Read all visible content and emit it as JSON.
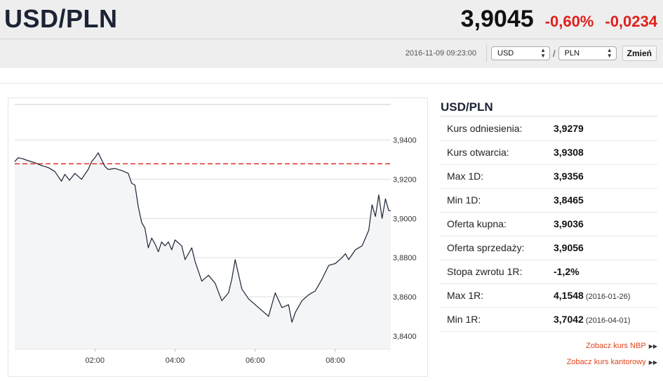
{
  "header": {
    "pair": "USD/PLN",
    "price": "3,9045",
    "change_pct": "-0,60%",
    "change_abs": "-0,0234",
    "timestamp": "2016-11-09 09:23:00",
    "from_currency": "USD",
    "to_currency": "PLN",
    "slash": "/",
    "change_button": "Zmień"
  },
  "colors": {
    "negative": "#e0201c",
    "line": "#1c2335",
    "reference_line": "#e0201c",
    "area_fill": "#f4f5f7",
    "link": "#e0441c"
  },
  "panel": {
    "title": "USD/PLN",
    "rows": [
      {
        "label": "Kurs odniesienia:",
        "value": "3,9279",
        "date": ""
      },
      {
        "label": "Kurs otwarcia:",
        "value": "3,9308",
        "date": ""
      },
      {
        "label": "Max 1D:",
        "value": "3,9356",
        "date": ""
      },
      {
        "label": "Min 1D:",
        "value": "3,8465",
        "date": ""
      },
      {
        "label": "Oferta kupna:",
        "value": "3,9036",
        "date": ""
      },
      {
        "label": "Oferta sprzedaży:",
        "value": "3,9056",
        "date": ""
      },
      {
        "label": "Stopa zwrotu 1R:",
        "value": "-1,2%",
        "date": ""
      },
      {
        "label": "Max 1R:",
        "value": "4,1548",
        "date": "(2016-01-26)"
      },
      {
        "label": "Min 1R:",
        "value": "3,7042",
        "date": "(2016-04-01)"
      }
    ],
    "links": [
      {
        "label": "Zobacz kurs NBP",
        "icon": "double-chevron-right-icon"
      },
      {
        "label": "Zobacz kurs kantorowy",
        "icon": "double-chevron-right-icon"
      }
    ]
  },
  "chart_data": {
    "type": "line",
    "title": "",
    "xlabel": "",
    "ylabel": "",
    "x_ticks": [
      "02:00",
      "04:00",
      "06:00",
      "08:00"
    ],
    "y_ticks": [
      "3,8400",
      "3,8600",
      "3,8800",
      "3,9000",
      "3,9200",
      "3,9400"
    ],
    "xlim": [
      "00:00",
      "09:23"
    ],
    "ylim": [
      3.8335,
      3.9585
    ],
    "reference_line": {
      "value": 3.9279,
      "style": "dashed",
      "color": "#e0201c"
    },
    "grid": "horizontal",
    "series": [
      {
        "name": "",
        "x": [
          "00:00",
          "00:05",
          "00:12",
          "00:20",
          "00:30",
          "00:40",
          "00:50",
          "01:00",
          "01:10",
          "01:15",
          "01:22",
          "01:30",
          "01:40",
          "01:50",
          "01:55",
          "02:00",
          "02:05",
          "02:10",
          "02:15",
          "02:20",
          "02:30",
          "02:40",
          "02:50",
          "02:55",
          "03:00",
          "03:05",
          "03:10",
          "03:15",
          "03:20",
          "03:25",
          "03:30",
          "03:35",
          "03:40",
          "03:45",
          "03:50",
          "03:55",
          "04:00",
          "04:10",
          "04:15",
          "04:25",
          "04:30",
          "04:40",
          "04:50",
          "05:00",
          "05:10",
          "05:20",
          "05:25",
          "05:30",
          "05:40",
          "05:50",
          "06:00",
          "06:10",
          "06:20",
          "06:25",
          "06:30",
          "06:40",
          "06:50",
          "06:55",
          "07:00",
          "07:10",
          "07:20",
          "07:30",
          "07:40",
          "07:50",
          "08:00",
          "08:10",
          "08:15",
          "08:20",
          "08:30",
          "08:40",
          "08:50",
          "08:55",
          "09:00",
          "09:05",
          "09:10",
          "09:15",
          "09:20",
          "09:23"
        ],
        "values": [
          3.929,
          3.931,
          3.9305,
          3.9295,
          3.9285,
          3.927,
          3.926,
          3.924,
          3.919,
          3.9225,
          3.9195,
          3.923,
          3.92,
          3.925,
          3.929,
          3.931,
          3.9335,
          3.93,
          3.9265,
          3.925,
          3.9255,
          3.9245,
          3.923,
          3.918,
          3.917,
          3.906,
          3.898,
          3.895,
          3.885,
          3.89,
          3.887,
          3.883,
          3.888,
          3.886,
          3.888,
          3.884,
          3.889,
          3.886,
          3.879,
          3.885,
          3.878,
          3.868,
          3.871,
          3.867,
          3.858,
          3.862,
          3.869,
          3.879,
          3.864,
          3.859,
          3.856,
          3.853,
          3.85,
          3.856,
          3.862,
          3.8545,
          3.856,
          3.847,
          3.852,
          3.858,
          3.861,
          3.863,
          3.869,
          3.876,
          3.877,
          3.88,
          3.882,
          3.879,
          3.884,
          3.886,
          3.894,
          3.907,
          3.901,
          3.912,
          3.9,
          3.91,
          3.904,
          3.904
        ]
      }
    ]
  }
}
